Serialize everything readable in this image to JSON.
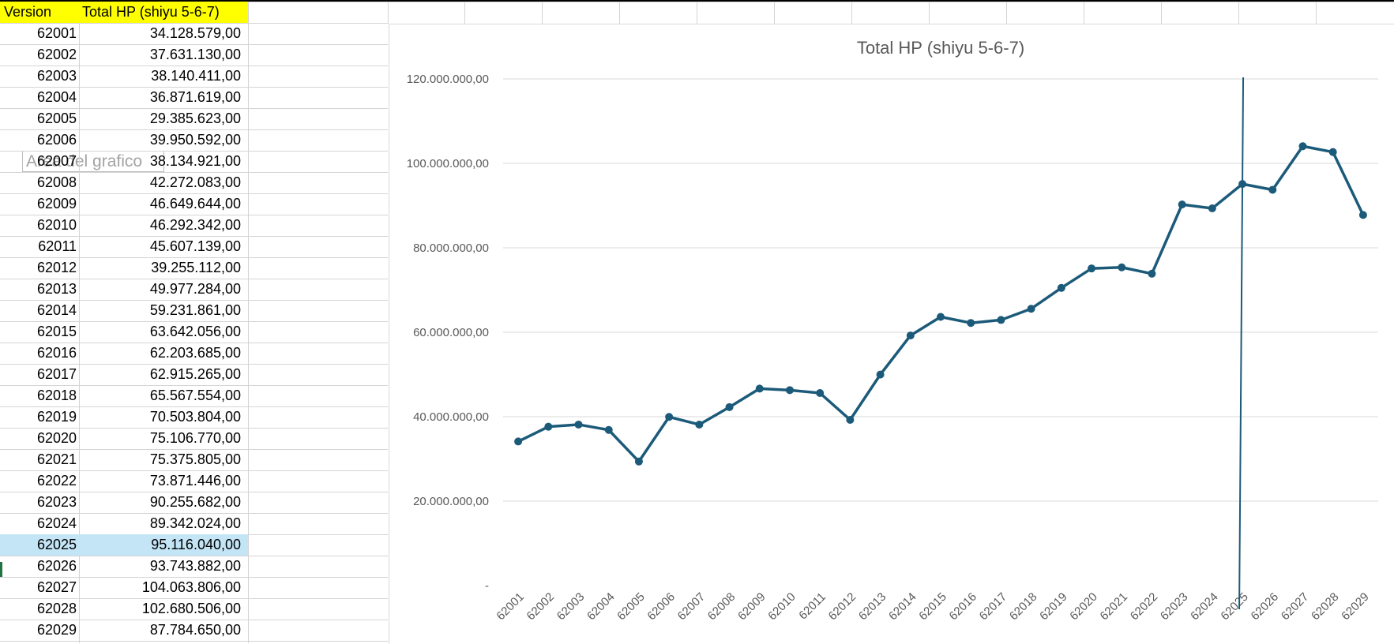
{
  "sheet": {
    "headers": [
      "Version",
      "Total HP  (shiyu 5-6-7)"
    ],
    "rows": [
      {
        "version": "62001",
        "hp": "34.128.579,00"
      },
      {
        "version": "62002",
        "hp": "37.631.130,00"
      },
      {
        "version": "62003",
        "hp": "38.140.411,00"
      },
      {
        "version": "62004",
        "hp": "36.871.619,00"
      },
      {
        "version": "62005",
        "hp": "29.385.623,00"
      },
      {
        "version": "62006",
        "hp": "39.950.592,00"
      },
      {
        "version": "62007",
        "hp": "38.134.921,00"
      },
      {
        "version": "62008",
        "hp": "42.272.083,00"
      },
      {
        "version": "62009",
        "hp": "46.649.644,00"
      },
      {
        "version": "62010",
        "hp": "46.292.342,00"
      },
      {
        "version": "62011",
        "hp": "45.607.139,00"
      },
      {
        "version": "62012",
        "hp": "39.255.112,00"
      },
      {
        "version": "62013",
        "hp": "49.977.284,00"
      },
      {
        "version": "62014",
        "hp": "59.231.861,00"
      },
      {
        "version": "62015",
        "hp": "63.642.056,00"
      },
      {
        "version": "62016",
        "hp": "62.203.685,00"
      },
      {
        "version": "62017",
        "hp": "62.915.265,00"
      },
      {
        "version": "62018",
        "hp": "65.567.554,00"
      },
      {
        "version": "62019",
        "hp": "70.503.804,00"
      },
      {
        "version": "62020",
        "hp": "75.106.770,00"
      },
      {
        "version": "62021",
        "hp": "75.375.805,00"
      },
      {
        "version": "62022",
        "hp": "73.871.446,00"
      },
      {
        "version": "62023",
        "hp": "90.255.682,00"
      },
      {
        "version": "62024",
        "hp": "89.342.024,00"
      },
      {
        "version": "62025",
        "hp": "95.116.040,00"
      },
      {
        "version": "62026",
        "hp": "93.743.882,00"
      },
      {
        "version": "62027",
        "hp": "104.063.806,00"
      },
      {
        "version": "62028",
        "hp": "102.680.506,00"
      },
      {
        "version": "62029",
        "hp": "87.784.650,00"
      }
    ],
    "selected_row": "62025"
  },
  "tooltip": {
    "text": "Area del grafico"
  },
  "colors": {
    "line": "#1c5a7a",
    "header_fill": "#ffff00",
    "selected_fill": "#c4e5f6",
    "gridline": "#d9d9d9"
  },
  "chart_data": {
    "type": "line",
    "title": "Total HP  (shiyu 5-6-7)",
    "xlabel": "",
    "ylabel": "",
    "ylim": [
      0,
      120000000
    ],
    "yticks": [
      0,
      20000000,
      40000000,
      60000000,
      80000000,
      100000000,
      120000000
    ],
    "ytick_labels": [
      "-",
      "20.000.000,00",
      "40.000.000,00",
      "60.000.000,00",
      "80.000.000,00",
      "100.000.000,00",
      "120.000.000,00"
    ],
    "grid": true,
    "legend": "none",
    "categories": [
      "62001",
      "62002",
      "62003",
      "62004",
      "62005",
      "62006",
      "62007",
      "62008",
      "62009",
      "62010",
      "62011",
      "62012",
      "62013",
      "62014",
      "62015",
      "62016",
      "62017",
      "62018",
      "62019",
      "62020",
      "62021",
      "62022",
      "62023",
      "62024",
      "62025",
      "62026",
      "62027",
      "62028",
      "62029"
    ],
    "values": [
      34128579,
      37631130,
      38140411,
      36871619,
      29385623,
      39950592,
      38134921,
      42272083,
      46649644,
      46292342,
      45607139,
      39255112,
      49977284,
      59231861,
      63642056,
      62203685,
      62915265,
      65567554,
      70503804,
      75106770,
      75375805,
      73871446,
      90255682,
      89342024,
      95116040,
      93743882,
      104063806,
      102680506,
      87784650
    ],
    "annotation": {
      "type": "vertical-line",
      "category": "62025"
    }
  }
}
